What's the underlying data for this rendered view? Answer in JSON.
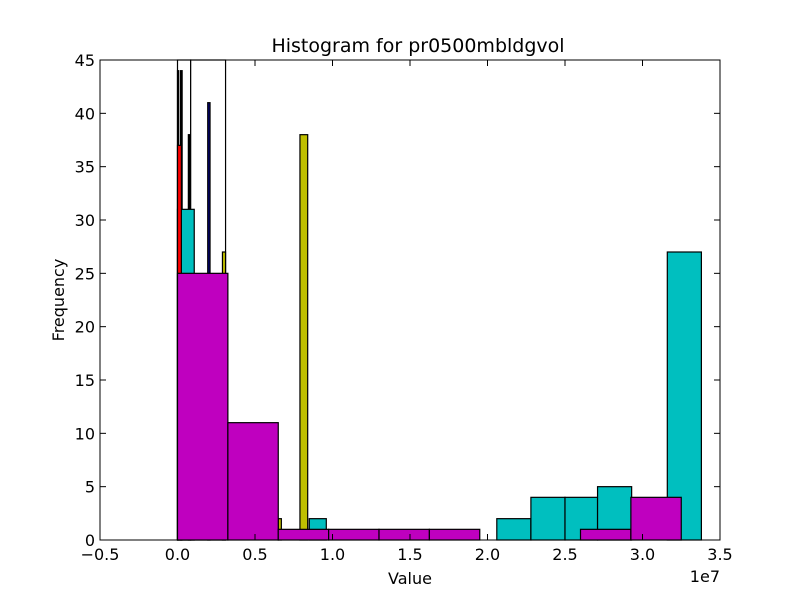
{
  "chart_data": {
    "type": "bar",
    "title": "Histogram for pr0500mbldgvol",
    "xlabel": "Value",
    "ylabel": "Frequency",
    "offset_text": "1e7",
    "xlim": [
      -5000000,
      35000000
    ],
    "ylim": [
      0,
      45
    ],
    "xticks": [
      -5000000,
      0,
      5000000,
      10000000,
      15000000,
      20000000,
      25000000,
      30000000,
      35000000
    ],
    "xtick_labels": [
      "−0.5",
      "0.0",
      "0.5",
      "1.0",
      "1.5",
      "2.0",
      "2.5",
      "3.0",
      "3.5"
    ],
    "yticks": [
      0,
      5,
      10,
      15,
      20,
      25,
      30,
      35,
      40,
      45
    ],
    "ytick_labels": [
      "0",
      "5",
      "10",
      "15",
      "20",
      "25",
      "30",
      "35",
      "40",
      "45"
    ],
    "series": [
      {
        "name": "white",
        "color": "#ffffff",
        "bins": [
          {
            "x0": 0,
            "x1": 850000,
            "count": 45
          },
          {
            "x0": 850000,
            "x1": 3100000,
            "count": 45
          }
        ]
      },
      {
        "name": "black",
        "color": "#000000",
        "bins": [
          {
            "x0": 0,
            "x1": 80000,
            "count": 44
          },
          {
            "x0": 200000,
            "x1": 300000,
            "count": 44
          },
          {
            "x0": 700000,
            "x1": 800000,
            "count": 38
          }
        ]
      },
      {
        "name": "navy",
        "color": "#000080",
        "bins": [
          {
            "x0": 1950000,
            "x1": 2100000,
            "count": 41
          }
        ]
      },
      {
        "name": "cyan",
        "color": "#00bfbf",
        "bins": [
          {
            "x0": 0,
            "x1": 1080000,
            "count": 31
          },
          {
            "x0": 8500000,
            "x1": 9600000,
            "count": 2
          },
          {
            "x0": 20600000,
            "x1": 22800000,
            "count": 2
          },
          {
            "x0": 22800000,
            "x1": 25000000,
            "count": 4
          },
          {
            "x0": 25000000,
            "x1": 27100000,
            "count": 4
          },
          {
            "x0": 27100000,
            "x1": 29300000,
            "count": 5
          },
          {
            "x0": 31600000,
            "x1": 33800000,
            "count": 27
          }
        ]
      },
      {
        "name": "yellow",
        "color": "#bfbf00",
        "bins": [
          {
            "x0": 2900000,
            "x1": 3100000,
            "count": 27
          },
          {
            "x0": 6500000,
            "x1": 6700000,
            "count": 2
          },
          {
            "x0": 7900000,
            "x1": 8400000,
            "count": 38
          }
        ]
      },
      {
        "name": "red",
        "color": "#ff0000",
        "bins": [
          {
            "x0": 0,
            "x1": 250000,
            "count": 37
          }
        ]
      },
      {
        "name": "magenta",
        "color": "#bf00bf",
        "bins": [
          {
            "x0": 0,
            "x1": 3250000,
            "count": 25
          },
          {
            "x0": 3250000,
            "x1": 6500000,
            "count": 11
          },
          {
            "x0": 6500000,
            "x1": 9750000,
            "count": 1
          },
          {
            "x0": 9750000,
            "x1": 13000000,
            "count": 1
          },
          {
            "x0": 13000000,
            "x1": 16250000,
            "count": 1
          },
          {
            "x0": 16250000,
            "x1": 19500000,
            "count": 1
          },
          {
            "x0": 26000000,
            "x1": 29250000,
            "count": 1
          },
          {
            "x0": 29250000,
            "x1": 32500000,
            "count": 4
          }
        ]
      }
    ]
  }
}
